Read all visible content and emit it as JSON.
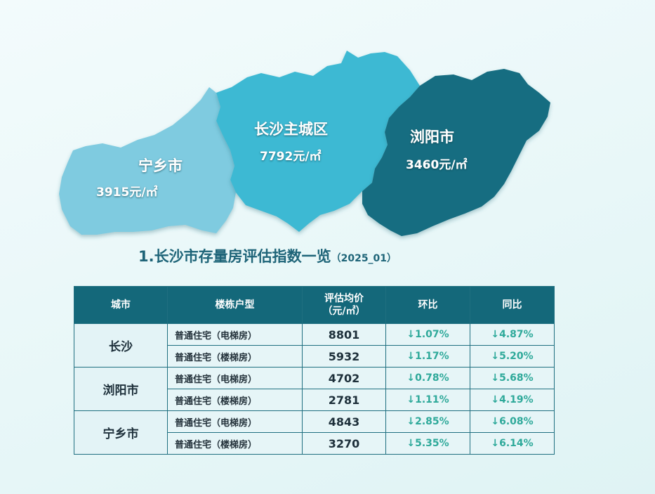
{
  "map": {
    "regions": [
      {
        "id": "ningxiang",
        "name": "宁乡市",
        "price": "3915元/㎡",
        "color": "#7fcbe0"
      },
      {
        "id": "changsha",
        "name": "长沙主城区",
        "price": "7792元/㎡",
        "color": "#3eb9d3"
      },
      {
        "id": "liuyang",
        "name": "浏阳市",
        "price": "3460元/㎡",
        "color": "#176d81"
      }
    ]
  },
  "title": {
    "main": "1.长沙市存量房评估指数一览",
    "sub": "（2025_01）"
  },
  "table": {
    "headers": {
      "city": "城市",
      "type": "楼栋户型",
      "price_line1": "评估均价",
      "price_line2": "（元/㎡）",
      "mom": "环比",
      "yoy": "同比"
    },
    "arrow": "↓",
    "groups": [
      {
        "city": "长沙",
        "rows": [
          {
            "type": "普通住宅（电梯房）",
            "price": "8801",
            "mom": "1.07%",
            "yoy": "4.87%"
          },
          {
            "type": "普通住宅（楼梯房）",
            "price": "5932",
            "mom": "1.17%",
            "yoy": "5.20%"
          }
        ]
      },
      {
        "city": "浏阳市",
        "rows": [
          {
            "type": "普通住宅（电梯房）",
            "price": "4702",
            "mom": "0.78%",
            "yoy": "5.68%"
          },
          {
            "type": "普通住宅（楼梯房）",
            "price": "2781",
            "mom": "1.11%",
            "yoy": "4.19%"
          }
        ]
      },
      {
        "city": "宁乡市",
        "rows": [
          {
            "type": "普通住宅（电梯房）",
            "price": "4843",
            "mom": "2.85%",
            "yoy": "6.08%"
          },
          {
            "type": "普通住宅（楼梯房）",
            "price": "3270",
            "mom": "5.35%",
            "yoy": "6.14%"
          }
        ]
      }
    ]
  }
}
